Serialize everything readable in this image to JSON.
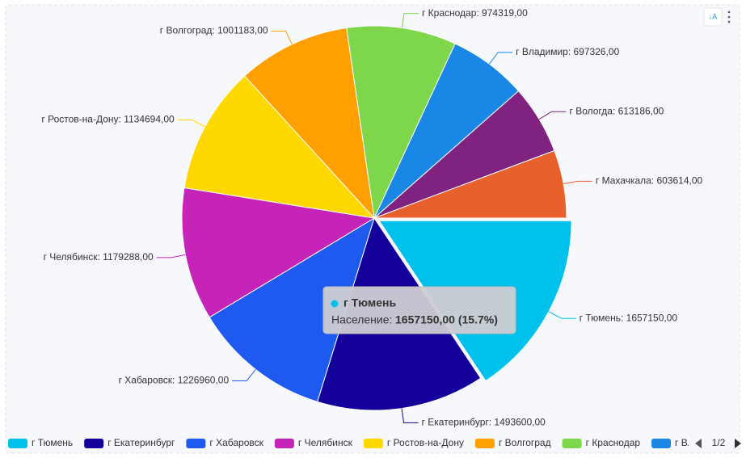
{
  "chart_data": {
    "type": "pie",
    "categories": [
      "г Тюмень",
      "г Екатеринбург",
      "г Хабаровск",
      "г Челябинск",
      "г Ростов-на-Дону",
      "г Волгоград",
      "г Краснодар",
      "г Владимир",
      "г Вологда",
      "г Махачкала"
    ],
    "values": [
      1657150,
      1493600,
      1226960,
      1179288,
      1134694,
      1001183,
      974319,
      697326,
      613186,
      603614
    ],
    "value_labels": [
      "г Тюмень: 1657150,00",
      "г Екатеринбург: 1493600,00",
      "г Хабаровск: 1226960,00",
      "г Челябинск: 1179288,00",
      "г Ростов-на-Дону: 1134694,00",
      "г Волгоград: 1001183,00",
      "г Краснодар: 974319,00",
      "г Владимир: 697326,00",
      "г Вологда: 613186,00",
      "г Махачкала: 603614,00"
    ],
    "colors": [
      "#00c0ec",
      "#14009a",
      "#1f5af0",
      "#c623b9",
      "#ffd800",
      "#ff9f00",
      "#7ed64b",
      "#1a87e6",
      "#7f2280",
      "#e8612c"
    ],
    "tooltip": {
      "title": "г Тюмень",
      "label": "Население:",
      "value": "1657150,00 (15.7%)"
    },
    "legend_page": "1/2"
  }
}
